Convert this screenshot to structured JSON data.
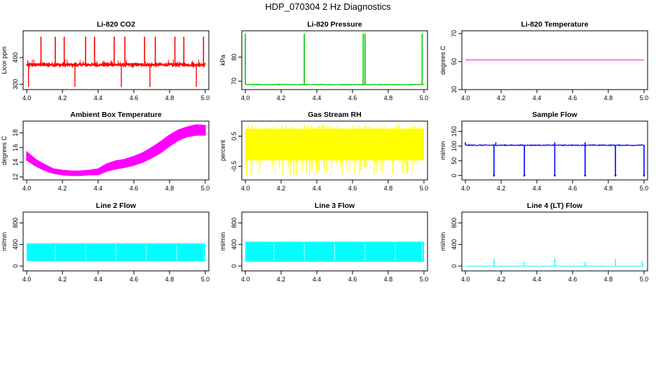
{
  "title": "HDP_070304  2 Hz Diagnostics",
  "chart_data": [
    {
      "type": "line",
      "title": "Li-820 CO2",
      "ylabel": "Licor ppm",
      "color": "#ff0000",
      "xlim": [
        3.98,
        5.02
      ],
      "ylim": [
        280,
        500
      ],
      "xticks": [
        "4.0",
        "4.2",
        "4.4",
        "4.6",
        "4.8",
        "5.0"
      ],
      "yticks": [
        "300",
        "400"
      ],
      "series": [
        {
          "name": "CO2",
          "baseline": 373,
          "noise": 4,
          "spikes_up": [
            4.08,
            4.16,
            4.21,
            4.33,
            4.38,
            4.49,
            4.55,
            4.66,
            4.72,
            4.83,
            4.88,
            4.99
          ],
          "spike_up_value": 478,
          "spikes_down": [
            4.01,
            4.27,
            4.53,
            4.69,
            4.95
          ],
          "spike_down_value": 290
        }
      ]
    },
    {
      "type": "line",
      "title": "Li-820 Pressure",
      "ylabel": "kPa",
      "color": "#00cc00",
      "xlim": [
        3.98,
        5.02
      ],
      "ylim": [
        66.5,
        91
      ],
      "xticks": [
        "4.0",
        "4.2",
        "4.4",
        "4.6",
        "4.8",
        "5.0"
      ],
      "yticks": [
        "70",
        "80"
      ],
      "series": [
        {
          "name": "Pressure",
          "baseline": 68.6,
          "noise": 0.15,
          "spikes_up": [
            4.0,
            4.33,
            4.66,
            4.67,
            4.99
          ],
          "spike_up_value": 89.8
        }
      ]
    },
    {
      "type": "line",
      "title": "Li-820 Temperature",
      "ylabel": "degrees C",
      "color": "#ff00ff",
      "xlim": [
        3.98,
        5.02
      ],
      "ylim": [
        30,
        72
      ],
      "xticks": [
        "4.0",
        "4.2",
        "4.4",
        "4.6",
        "4.8",
        "5.0"
      ],
      "yticks": [
        "30",
        "50",
        "70"
      ],
      "series": [
        {
          "name": "Temperature",
          "x": [
            4.0,
            5.0
          ],
          "y": [
            51.2,
            51.2
          ]
        }
      ]
    },
    {
      "type": "area",
      "title": "Ambient Box Temperature",
      "ylabel": "degrees C",
      "color": "#ff00ff",
      "xlim": [
        3.98,
        5.02
      ],
      "ylim": [
        11.6,
        19.6
      ],
      "xticks": [
        "4.0",
        "4.2",
        "4.4",
        "4.6",
        "4.8",
        "5.0"
      ],
      "yticks": [
        "12",
        "14",
        "16",
        "18"
      ],
      "series": [
        {
          "name": "Box temp",
          "x": [
            4.0,
            4.05,
            4.1,
            4.15,
            4.2,
            4.25,
            4.3,
            4.35,
            4.4,
            4.45,
            4.5,
            4.55,
            4.6,
            4.65,
            4.7,
            4.75,
            4.8,
            4.85,
            4.9,
            4.95,
            5.0
          ],
          "low": [
            14.3,
            13.5,
            12.9,
            12.5,
            12.3,
            12.2,
            12.2,
            12.3,
            12.3,
            12.8,
            13.1,
            13.3,
            13.6,
            14.0,
            14.6,
            15.3,
            16.2,
            17.0,
            17.5,
            17.7,
            17.7
          ],
          "high": [
            15.4,
            14.4,
            13.7,
            13.1,
            12.9,
            12.8,
            12.8,
            12.9,
            13.1,
            13.8,
            14.2,
            14.4,
            14.8,
            15.3,
            16.0,
            16.8,
            17.7,
            18.4,
            18.8,
            19.1,
            19.0
          ]
        }
      ]
    },
    {
      "type": "area",
      "title": "Gas Stream RH",
      "ylabel": "percent",
      "color": "#ffff00",
      "xlim": [
        3.98,
        5.02
      ],
      "ylim": [
        -0.95,
        1.0
      ],
      "xticks": [
        "4.0",
        "4.2",
        "4.4",
        "4.6",
        "4.8",
        "5.0"
      ],
      "yticks": [
        "-0.5",
        "0.5"
      ],
      "series": [
        {
          "name": "RH",
          "band_low": -0.3,
          "band_high": 0.75,
          "spike_low": -0.85,
          "spike_high": 0.9
        }
      ]
    },
    {
      "type": "line",
      "title": "Sample Flow",
      "ylabel": "ml/min",
      "color": "#0000ff",
      "xlim": [
        3.98,
        5.02
      ],
      "ylim": [
        -15,
        185
      ],
      "xticks": [
        "4.0",
        "4.2",
        "4.4",
        "4.6",
        "4.8",
        "5.0"
      ],
      "yticks": [
        "0",
        "50",
        "100",
        "150"
      ],
      "series": [
        {
          "name": "Sample flow",
          "baseline": 103,
          "noise": 1.5,
          "dips": [
            4.16,
            4.33,
            4.5,
            4.67,
            4.84,
            5.0
          ],
          "dip_value": 0,
          "spikes_up": [
            4.0,
            4.17,
            4.5,
            4.67
          ],
          "spike_up_value": 113
        }
      ]
    },
    {
      "type": "area",
      "title": "Line 2 Flow",
      "ylabel": "ml/min",
      "color": "#00ffff",
      "xlim": [
        3.98,
        5.02
      ],
      "ylim": [
        -90,
        1000
      ],
      "xticks": [
        "4.0",
        "4.2",
        "4.4",
        "4.6",
        "4.8",
        "5.0"
      ],
      "yticks": [
        "0",
        "400",
        "800"
      ],
      "series": [
        {
          "name": "Line 2",
          "low": 90,
          "high": 420,
          "gaps": [
            4.16,
            4.33,
            4.5,
            4.67,
            4.84,
            4.99
          ]
        }
      ]
    },
    {
      "type": "area",
      "title": "Line 3 Flow",
      "ylabel": "ml/min",
      "color": "#00ffff",
      "xlim": [
        3.98,
        5.02
      ],
      "ylim": [
        -90,
        1000
      ],
      "xticks": [
        "4.0",
        "4.2",
        "4.4",
        "4.6",
        "4.8",
        "5.0"
      ],
      "yticks": [
        "0",
        "400",
        "800"
      ],
      "series": [
        {
          "name": "Line 3",
          "low": 80,
          "high": 450,
          "gaps": [
            4.16,
            4.33,
            4.5,
            4.67,
            4.84,
            4.99
          ]
        }
      ]
    },
    {
      "type": "line",
      "title": "Line 4 (LT) Flow",
      "ylabel": "ml/min",
      "color": "#00ffff",
      "xlim": [
        3.98,
        5.02
      ],
      "ylim": [
        -90,
        1000
      ],
      "xticks": [
        "4.0",
        "4.2",
        "4.4",
        "4.6",
        "4.8",
        "5.0"
      ],
      "yticks": [
        "0",
        "400",
        "800"
      ],
      "series": [
        {
          "name": "Line 4",
          "baseline": 0,
          "spikes_up": [
            4.16,
            4.33,
            4.5,
            4.67,
            4.84,
            4.99
          ],
          "spike_values": [
            140,
            80,
            140,
            80,
            130,
            90
          ]
        }
      ]
    }
  ]
}
